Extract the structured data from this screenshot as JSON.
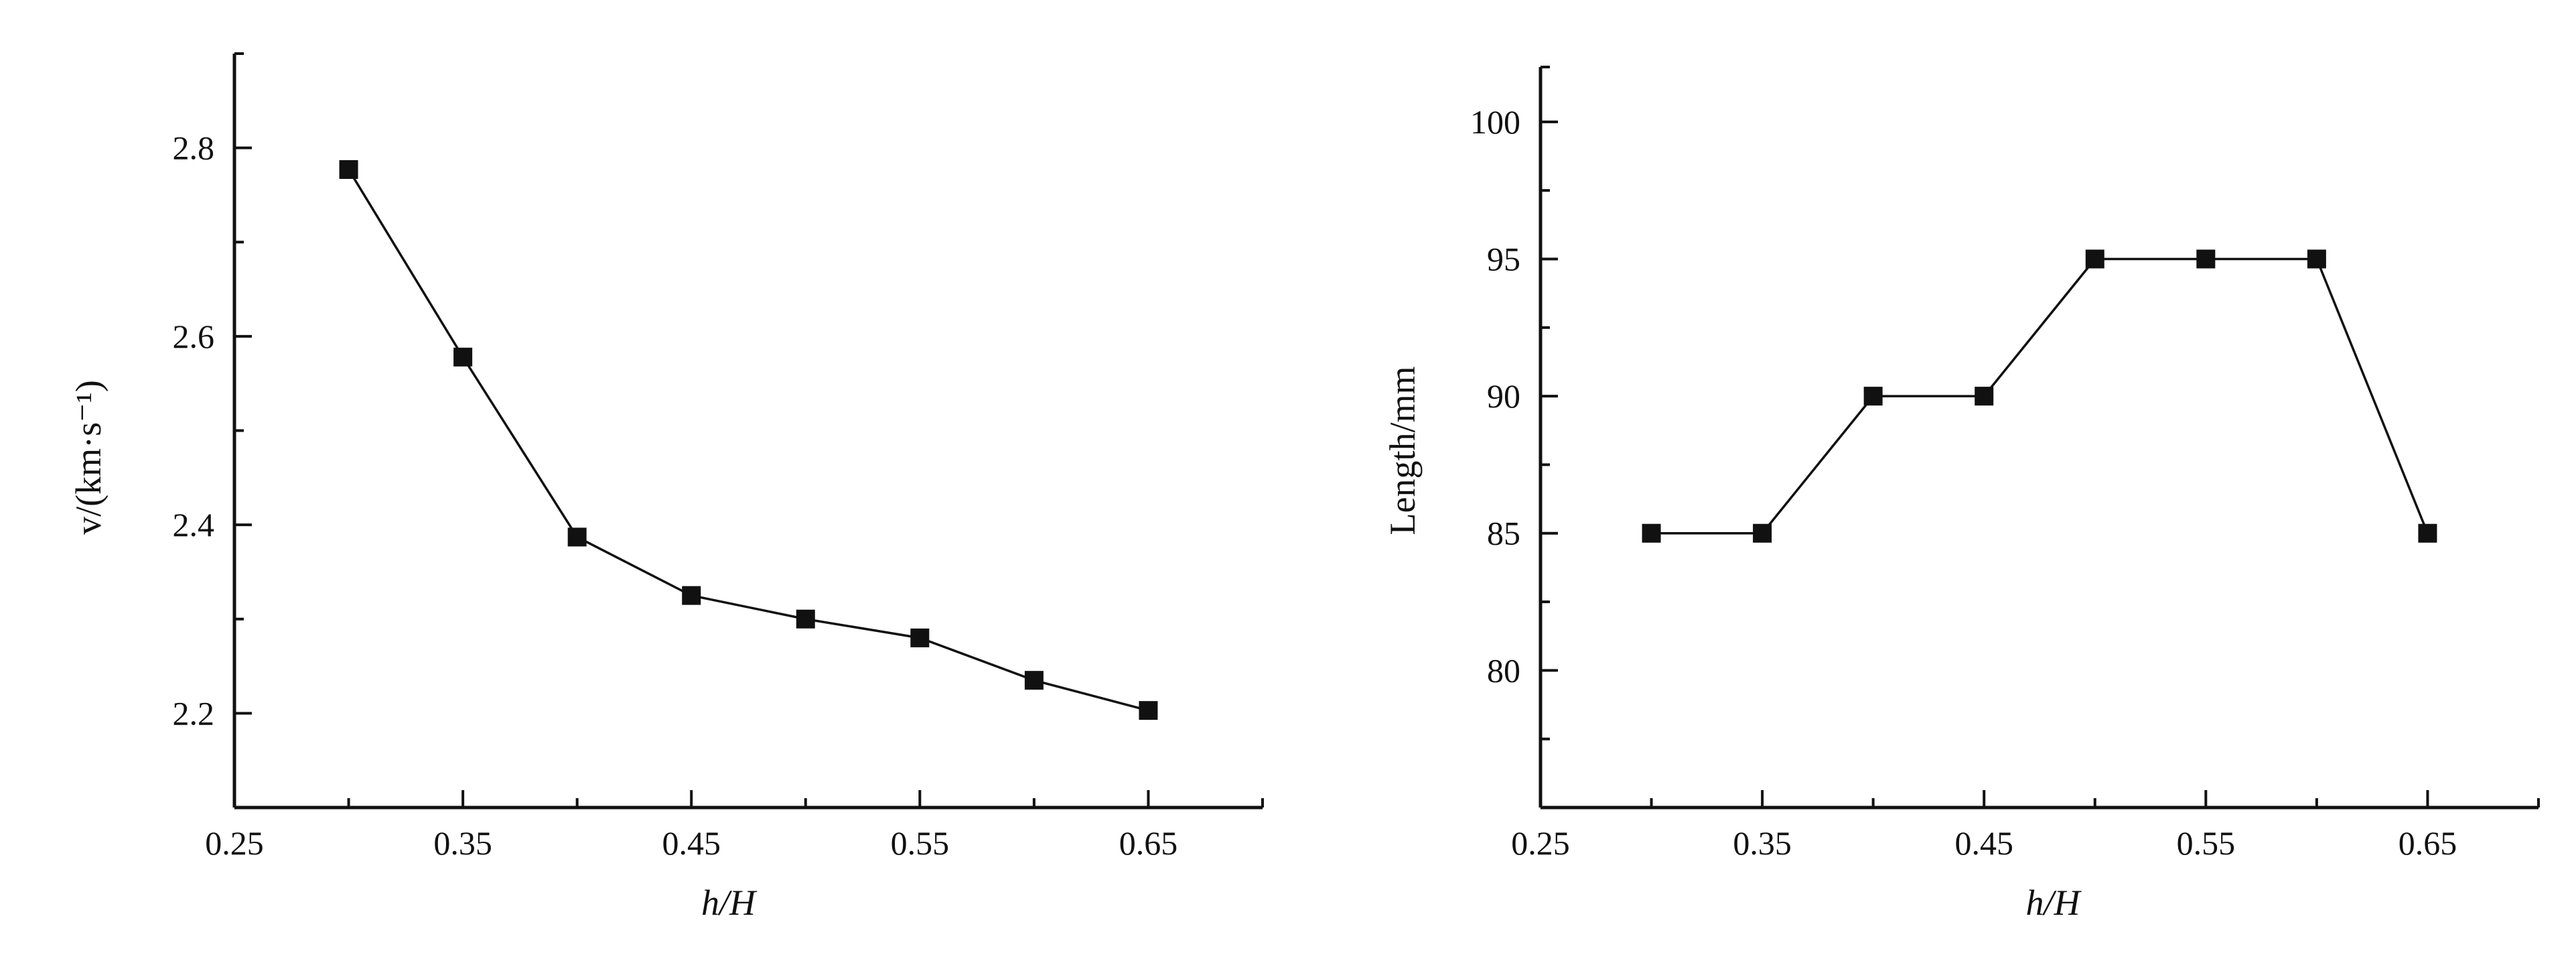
{
  "chart_data": [
    {
      "type": "line",
      "title": "",
      "xlabel": "h/H",
      "ylabel": "v/(km·s⁻¹)",
      "xlim": [
        0.25,
        0.7
      ],
      "ylim": [
        2.1,
        2.9
      ],
      "xticks": [
        0.25,
        0.35,
        0.45,
        0.55,
        0.65
      ],
      "xtick_labels": [
        "0.25",
        "0.35",
        "0.45",
        "0.55",
        "0.65"
      ],
      "yticks": [
        2.2,
        2.4,
        2.6,
        2.8
      ],
      "ytick_labels": [
        "2.2",
        "2.4",
        "2.6",
        "2.8"
      ],
      "grid": false,
      "marker": "square",
      "color": "#111111",
      "x": [
        0.3,
        0.35,
        0.4,
        0.45,
        0.5,
        0.55,
        0.6,
        0.65
      ],
      "series": [
        {
          "values": [
            2.777,
            2.578,
            2.387,
            2.325,
            2.3,
            2.28,
            2.235,
            2.203
          ]
        }
      ]
    },
    {
      "type": "line",
      "title": "",
      "xlabel": "h/H",
      "ylabel": "Length/mm",
      "xlim": [
        0.25,
        0.7
      ],
      "ylim": [
        75,
        102
      ],
      "xticks": [
        0.25,
        0.35,
        0.45,
        0.55,
        0.65
      ],
      "xtick_labels": [
        "0.25",
        "0.35",
        "0.45",
        "0.55",
        "0.65"
      ],
      "yticks": [
        80,
        85,
        90,
        95,
        100
      ],
      "ytick_labels": [
        "80",
        "85",
        "90",
        "95",
        "100"
      ],
      "grid": false,
      "marker": "square",
      "color": "#111111",
      "x": [
        0.3,
        0.35,
        0.4,
        0.45,
        0.5,
        0.55,
        0.6,
        0.65
      ],
      "series": [
        {
          "values": [
            85,
            85,
            90,
            90,
            95,
            95,
            95,
            85
          ]
        }
      ]
    }
  ]
}
